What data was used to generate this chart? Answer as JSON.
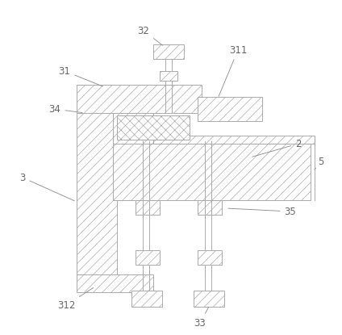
{
  "bg_color": "#ffffff",
  "lc": "#aaaaaa",
  "lc_dark": "#999999",
  "lw": 0.7,
  "hatch_lw": 0.5,
  "label_fs": 8.5,
  "label_color": "#666666",
  "arrow_color": "#888888"
}
